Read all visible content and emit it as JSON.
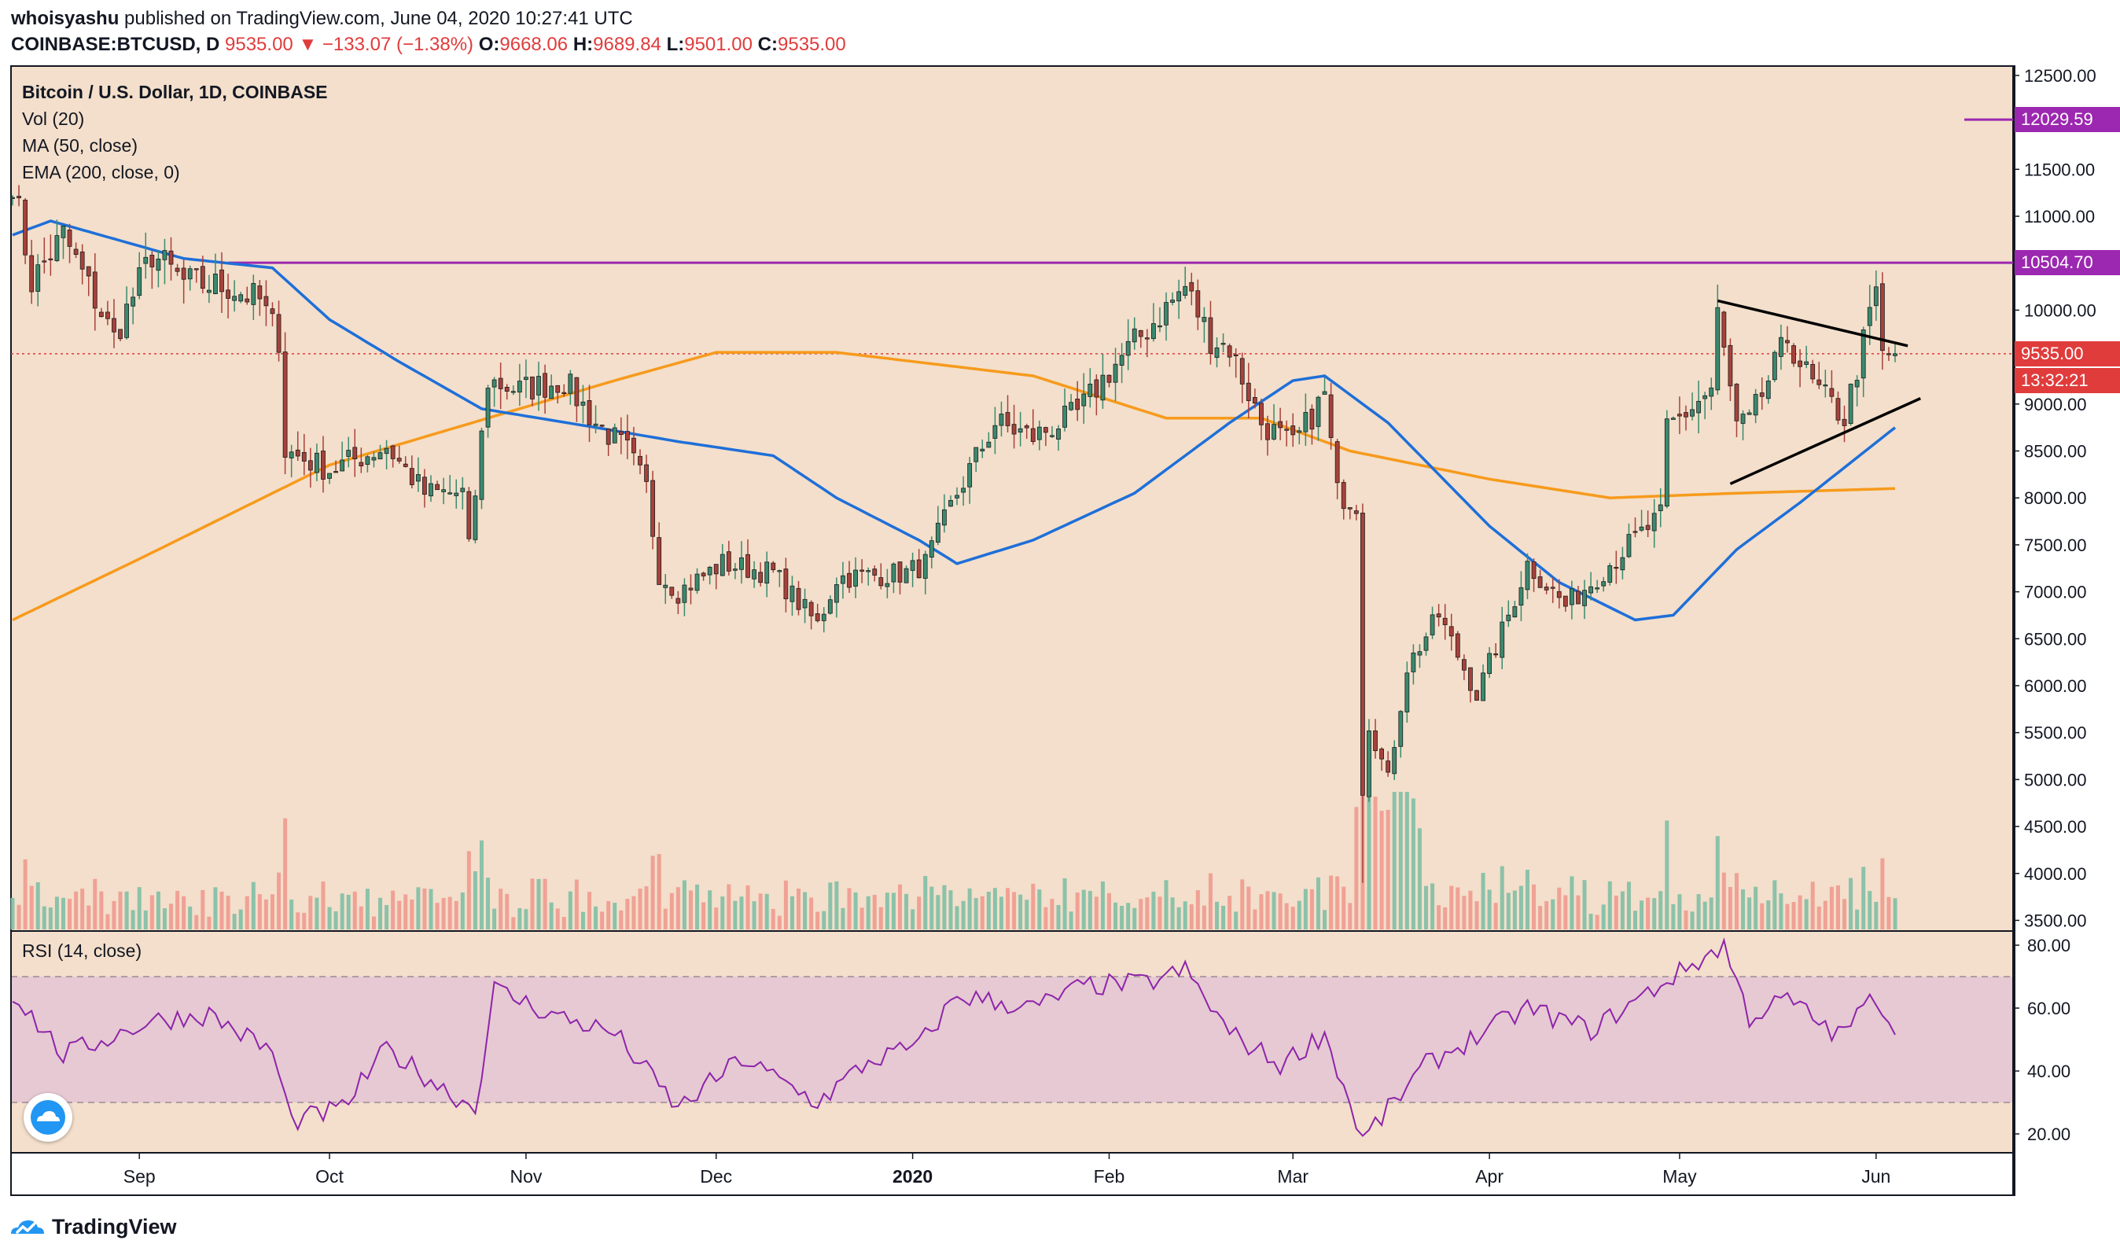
{
  "header": {
    "publisher": "whoisyashu",
    "published_text": "published on TradingView.com, June 04, 2020 10:27:41 UTC",
    "symbol": "COINBASE:BTCUSD, D",
    "last_price": "9535.00",
    "change_arrow": "▼",
    "change": "−133.07 (−1.38%)",
    "open_label": "O:",
    "open": "9668.06",
    "high_label": "H:",
    "high": "9689.84",
    "low_label": "L:",
    "low": "9501.00",
    "close_label": "C:",
    "close": "9535.00"
  },
  "legend": {
    "title": "Bitcoin / U.S. Dollar, 1D, COINBASE",
    "vol": "Vol (20)",
    "ma": "MA (50, close)",
    "ema": "EMA (200, close, 0)"
  },
  "rsi_label": "RSI (14, close)",
  "price_tags": {
    "upper": "12029.59",
    "resistance": "10504.70",
    "current": "9535.00",
    "countdown": "13:32:21"
  },
  "footer": {
    "brand": "TradingView",
    "logo_icon": "tradingview-logo-icon"
  },
  "colors": {
    "background": "#f3dfcb",
    "up_candle": "#3a8a6e",
    "down_candle": "#a8413b",
    "ma50": "#1e6fd9",
    "ema200": "#f79a1c",
    "purple": "#9c27b0",
    "rsi": "#8e24aa",
    "rsi_band": "#e6c9d3"
  },
  "chart_data": [
    {
      "type": "candlestick",
      "title": "Bitcoin / U.S. Dollar, 1D, COINBASE",
      "x_ticks": [
        "Sep",
        "Oct",
        "Nov",
        "Dec",
        "2020",
        "Feb",
        "Mar",
        "Apr",
        "May",
        "Jun"
      ],
      "y_ticks": [
        3500,
        4000,
        4500,
        5000,
        5500,
        6000,
        6500,
        7000,
        7500,
        8000,
        8500,
        9000,
        9500,
        10000,
        10500,
        11000,
        11500,
        12000,
        12500
      ],
      "ylim": [
        3420,
        12600
      ],
      "x_start": "2019-08-12",
      "x_end": "2020-06-04",
      "close_anchors": [
        [
          "2019-08-12",
          11400
        ],
        [
          "2019-08-15",
          10300
        ],
        [
          "2019-08-20",
          10800
        ],
        [
          "2019-08-28",
          9700
        ],
        [
          "2019-09-03",
          10600
        ],
        [
          "2019-09-08",
          10300
        ],
        [
          "2019-09-15",
          10250
        ],
        [
          "2019-09-20",
          10100
        ],
        [
          "2019-09-23",
          9700
        ],
        [
          "2019-09-24",
          8500
        ],
        [
          "2019-10-01",
          8300
        ],
        [
          "2019-10-10",
          8550
        ],
        [
          "2019-10-16",
          8050
        ],
        [
          "2019-10-22",
          8050
        ],
        [
          "2019-10-23",
          7450
        ],
        [
          "2019-10-25",
          8650
        ],
        [
          "2019-10-26",
          9250
        ],
        [
          "2019-10-31",
          9150
        ],
        [
          "2019-11-07",
          9250
        ],
        [
          "2019-11-12",
          8800
        ],
        [
          "2019-11-17",
          8500
        ],
        [
          "2019-11-20",
          8100
        ],
        [
          "2019-11-22",
          7200
        ],
        [
          "2019-11-25",
          7000
        ],
        [
          "2019-12-02",
          7300
        ],
        [
          "2019-12-10",
          7200
        ],
        [
          "2019-12-17",
          6650
        ],
        [
          "2019-12-20",
          7150
        ],
        [
          "2019-12-31",
          7200
        ],
        [
          "2020-01-03",
          7300
        ],
        [
          "2020-01-08",
          8050
        ],
        [
          "2020-01-14",
          8800
        ],
        [
          "2020-01-20",
          8650
        ],
        [
          "2020-01-27",
          8900
        ],
        [
          "2020-02-01",
          9350
        ],
        [
          "2020-02-07",
          9800
        ],
        [
          "2020-02-13",
          10250
        ],
        [
          "2020-02-17",
          9700
        ],
        [
          "2020-02-20",
          9600
        ],
        [
          "2020-02-25",
          8800
        ],
        [
          "2020-03-01",
          8550
        ],
        [
          "2020-03-06",
          9100
        ],
        [
          "2020-03-08",
          8050
        ],
        [
          "2020-03-11",
          7950
        ],
        [
          "2020-03-12",
          4900
        ],
        [
          "2020-03-13",
          5600
        ],
        [
          "2020-03-16",
          5000
        ],
        [
          "2020-03-19",
          6200
        ],
        [
          "2020-03-24",
          6750
        ],
        [
          "2020-03-30",
          5900
        ],
        [
          "2020-04-04",
          6750
        ],
        [
          "2020-04-07",
          7300
        ],
        [
          "2020-04-13",
          6850
        ],
        [
          "2020-04-17",
          7100
        ],
        [
          "2020-04-23",
          7500
        ],
        [
          "2020-04-28",
          7800
        ],
        [
          "2020-04-29",
          8750
        ],
        [
          "2020-05-01",
          8850
        ],
        [
          "2020-05-06",
          9150
        ],
        [
          "2020-05-07",
          9950
        ],
        [
          "2020-05-10",
          8750
        ],
        [
          "2020-05-12",
          8800
        ],
        [
          "2020-05-18",
          9700
        ],
        [
          "2020-05-22",
          9200
        ],
        [
          "2020-05-27",
          8850
        ],
        [
          "2020-05-30",
          9650
        ],
        [
          "2020-06-01",
          10200
        ],
        [
          "2020-06-02",
          9500
        ],
        [
          "2020-06-04",
          9535
        ]
      ],
      "ma50_anchors": [
        [
          "2019-08-12",
          10800
        ],
        [
          "2019-08-18",
          10950
        ],
        [
          "2019-09-08",
          10550
        ],
        [
          "2019-09-22",
          10450
        ],
        [
          "2019-10-01",
          9900
        ],
        [
          "2019-10-12",
          9450
        ],
        [
          "2019-10-25",
          8950
        ],
        [
          "2019-11-12",
          8750
        ],
        [
          "2019-11-25",
          8600
        ],
        [
          "2019-12-10",
          8450
        ],
        [
          "2019-12-20",
          8000
        ],
        [
          "2020-01-02",
          7550
        ],
        [
          "2020-01-08",
          7300
        ],
        [
          "2020-01-20",
          7550
        ],
        [
          "2020-02-05",
          8050
        ],
        [
          "2020-02-20",
          8800
        ],
        [
          "2020-03-01",
          9250
        ],
        [
          "2020-03-06",
          9300
        ],
        [
          "2020-03-16",
          8800
        ],
        [
          "2020-04-01",
          7700
        ],
        [
          "2020-04-12",
          7100
        ],
        [
          "2020-04-24",
          6700
        ],
        [
          "2020-04-30",
          6750
        ],
        [
          "2020-05-10",
          7450
        ],
        [
          "2020-05-20",
          7950
        ],
        [
          "2020-06-04",
          8750
        ]
      ],
      "ema200_anchors": [
        [
          "2019-08-12",
          6700
        ],
        [
          "2019-09-01",
          7350
        ],
        [
          "2019-10-01",
          8350
        ],
        [
          "2019-10-26",
          8850
        ],
        [
          "2019-11-15",
          9250
        ],
        [
          "2019-12-01",
          9550
        ],
        [
          "2019-12-20",
          9550
        ],
        [
          "2020-01-20",
          9300
        ],
        [
          "2020-02-10",
          8850
        ],
        [
          "2020-02-25",
          8850
        ],
        [
          "2020-03-10",
          8500
        ],
        [
          "2020-04-01",
          8200
        ],
        [
          "2020-04-20",
          8000
        ],
        [
          "2020-05-10",
          8050
        ],
        [
          "2020-06-04",
          8100
        ]
      ],
      "rsi_anchors": [
        [
          "2019-08-12",
          65
        ],
        [
          "2019-08-20",
          45
        ],
        [
          "2019-09-03",
          56
        ],
        [
          "2019-09-12",
          58
        ],
        [
          "2019-09-22",
          46
        ],
        [
          "2019-09-25",
          24
        ],
        [
          "2019-10-03",
          28
        ],
        [
          "2019-10-10",
          47
        ],
        [
          "2019-10-20",
          33
        ],
        [
          "2019-10-24",
          28
        ],
        [
          "2019-10-27",
          66
        ],
        [
          "2019-11-05",
          58
        ],
        [
          "2019-11-15",
          52
        ],
        [
          "2019-11-25",
          28
        ],
        [
          "2019-12-05",
          44
        ],
        [
          "2019-12-17",
          30
        ],
        [
          "2019-12-25",
          43
        ],
        [
          "2020-01-02",
          48
        ],
        [
          "2020-01-08",
          64
        ],
        [
          "2020-01-20",
          60
        ],
        [
          "2020-01-28",
          67
        ],
        [
          "2020-02-07",
          68
        ],
        [
          "2020-02-13",
          72
        ],
        [
          "2020-02-20",
          52
        ],
        [
          "2020-02-28",
          42
        ],
        [
          "2020-03-06",
          52
        ],
        [
          "2020-03-12",
          18
        ],
        [
          "2020-03-22",
          42
        ],
        [
          "2020-04-07",
          60
        ],
        [
          "2020-04-17",
          53
        ],
        [
          "2020-04-30",
          70
        ],
        [
          "2020-05-08",
          80
        ],
        [
          "2020-05-12",
          57
        ],
        [
          "2020-05-18",
          63
        ],
        [
          "2020-05-26",
          51
        ],
        [
          "2020-06-01",
          64
        ],
        [
          "2020-06-04",
          53
        ]
      ],
      "rsi_ylim": [
        14,
        84
      ],
      "rsi_y_ticks": [
        20,
        40,
        60,
        80
      ],
      "rsi_band": [
        30,
        70
      ],
      "horizontal_levels": [
        {
          "price": 10504.7,
          "from": "2019-09-15",
          "style": "solid"
        },
        {
          "price": 12029.59,
          "from": "2020-06-18",
          "style": "solid-short"
        },
        {
          "price": 9535,
          "from": "2019-08-12",
          "style": "dotted"
        }
      ],
      "trendlines": [
        {
          "from": [
            "2020-05-07",
            10100
          ],
          "to": [
            "2020-06-06",
            9620
          ]
        },
        {
          "from": [
            "2020-05-09",
            8150
          ],
          "to": [
            "2020-06-08",
            9060
          ]
        }
      ]
    }
  ]
}
